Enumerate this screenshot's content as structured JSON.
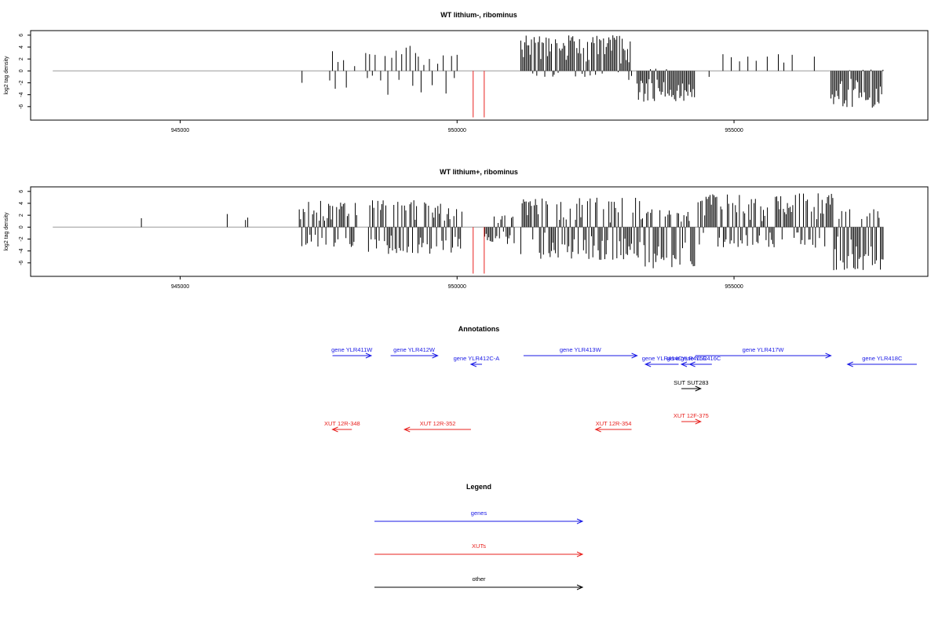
{
  "chart_data": [
    {
      "type": "bar",
      "title": "WT lithium-, ribominus",
      "ylabel": "log2 tag density",
      "xlabel": "",
      "xlim": [
        942300,
        958500
      ],
      "ylim": [
        -8,
        6.5
      ],
      "xticks": [
        945000,
        950000,
        955000
      ],
      "xtick_labels": [
        "945000",
        "950000",
        "955000"
      ],
      "yticks": [
        6,
        4,
        2,
        0,
        -2,
        -4,
        -6
      ],
      "ytick_labels": [
        "6",
        "4",
        "2",
        "0",
        "-2",
        "-4",
        "-6"
      ],
      "baseline": {
        "from": 942700,
        "to": 957700
      },
      "series": [
        {
          "color": "#000000",
          "bars": [
            {
              "x": 947200,
              "y": -2.0
            },
            {
              "x": 947700,
              "y": -1.6
            },
            {
              "x": 947750,
              "y": 3.3
            },
            {
              "x": 947800,
              "y": -3.0
            },
            {
              "x": 947850,
              "y": 1.5
            },
            {
              "x": 947950,
              "y": 1.8
            },
            {
              "x": 948000,
              "y": -2.8
            },
            {
              "x": 948150,
              "y": 0.8
            },
            {
              "x": 948350,
              "y": 3.0
            },
            {
              "x": 948380,
              "y": -1.2
            },
            {
              "x": 948420,
              "y": 2.8
            },
            {
              "x": 948470,
              "y": -0.8
            },
            {
              "x": 948520,
              "y": 2.7
            },
            {
              "x": 948620,
              "y": -1.6
            },
            {
              "x": 948700,
              "y": 2.5
            },
            {
              "x": 948750,
              "y": -4.0
            },
            {
              "x": 948820,
              "y": 2.2
            },
            {
              "x": 948900,
              "y": 3.4
            },
            {
              "x": 948950,
              "y": -1.5
            },
            {
              "x": 949000,
              "y": 2.8
            },
            {
              "x": 949080,
              "y": 3.9
            },
            {
              "x": 949150,
              "y": 4.2
            },
            {
              "x": 949200,
              "y": -2.5
            },
            {
              "x": 949250,
              "y": 3.0
            },
            {
              "x": 949300,
              "y": 2.4
            },
            {
              "x": 949350,
              "y": -3.6
            },
            {
              "x": 949400,
              "y": 1.0
            },
            {
              "x": 949500,
              "y": 2.0
            },
            {
              "x": 949550,
              "y": -2.4
            },
            {
              "x": 949650,
              "y": 1.2
            },
            {
              "x": 949750,
              "y": 2.6
            },
            {
              "x": 949800,
              "y": -3.8
            },
            {
              "x": 949900,
              "y": 2.5
            },
            {
              "x": 949950,
              "y": -1.2
            },
            {
              "x": 950000,
              "y": 2.7
            },
            {
              "x": 953100,
              "y": -1.5
            },
            {
              "x": 953300,
              "y": -2.2
            },
            {
              "x": 954550,
              "y": -1.0
            },
            {
              "x": 954800,
              "y": 2.8
            },
            {
              "x": 954950,
              "y": 2.3
            },
            {
              "x": 955100,
              "y": 1.6
            },
            {
              "x": 955250,
              "y": 2.4
            },
            {
              "x": 955400,
              "y": 1.7
            },
            {
              "x": 955600,
              "y": 2.4
            },
            {
              "x": 955800,
              "y": 2.8
            },
            {
              "x": 955900,
              "y": 1.4
            },
            {
              "x": 956050,
              "y": 2.7
            },
            {
              "x": 956450,
              "y": 2.4
            }
          ],
          "dense_blocks": [
            {
              "from": 951150,
              "to": 953150,
              "min": -1.0,
              "max": 6.0
            },
            {
              "from": 953250,
              "to": 954300,
              "min": -5.2,
              "max": 0.5
            },
            {
              "from": 956750,
              "to": 957700,
              "min": -6.2,
              "max": 0.3
            }
          ]
        },
        {
          "color": "#e8211e",
          "bars": [
            {
              "x": 950290,
              "y": -7.8
            },
            {
              "x": 950490,
              "y": -7.8
            }
          ]
        }
      ]
    },
    {
      "type": "bar",
      "title": "WT lithium+, ribominus",
      "ylabel": "log2 tag density",
      "xlabel": "",
      "xlim": [
        942300,
        958500
      ],
      "ylim": [
        -8,
        6.5
      ],
      "xticks": [
        945000,
        950000,
        955000
      ],
      "xtick_labels": [
        "945000",
        "950000",
        "955000"
      ],
      "yticks": [
        6,
        4,
        2,
        0,
        -2,
        -4,
        -6
      ],
      "ytick_labels": [
        "6",
        "4",
        "2",
        "0",
        "-2",
        "-4",
        "-6"
      ],
      "baseline": {
        "from": 942700,
        "to": 957700
      },
      "series": [
        {
          "color": "#000000",
          "bars": [
            {
              "x": 944300,
              "y": 1.5
            },
            {
              "x": 945850,
              "y": 2.2
            },
            {
              "x": 946180,
              "y": 1.2
            },
            {
              "x": 946220,
              "y": 1.6
            }
          ],
          "dense_blocks": [
            {
              "from": 947150,
              "to": 948200,
              "min": -3.5,
              "max": 4.5
            },
            {
              "from": 948400,
              "to": 950100,
              "min": -4.5,
              "max": 4.8
            },
            {
              "from": 950500,
              "to": 951050,
              "min": -3.0,
              "max": 2.0
            },
            {
              "from": 951150,
              "to": 953300,
              "min": -5.5,
              "max": 5.0
            },
            {
              "from": 953300,
              "to": 954300,
              "min": -7.0,
              "max": 3.0
            },
            {
              "from": 954350,
              "to": 956800,
              "min": -3.5,
              "max": 5.8
            },
            {
              "from": 956800,
              "to": 957700,
              "min": -7.5,
              "max": 3.0
            }
          ]
        },
        {
          "color": "#e8211e",
          "bars": [
            {
              "x": 950290,
              "y": -7.8
            },
            {
              "x": 950490,
              "y": -7.8
            }
          ]
        }
      ]
    },
    {
      "type": "other",
      "title": "Annotations",
      "xlim": [
        942300,
        958500
      ],
      "features": [
        {
          "label": "gene YLR411W",
          "start": 947750,
          "end": 948450,
          "strand": "+",
          "row": 1,
          "kind": "genes"
        },
        {
          "label": "gene YLR412W",
          "start": 948800,
          "end": 949650,
          "strand": "+",
          "row": 1,
          "kind": "genes"
        },
        {
          "label": "gene YLR412C-A",
          "start": 950250,
          "end": 950450,
          "strand": "-",
          "row": 2,
          "kind": "genes"
        },
        {
          "label": "gene YLR413W",
          "start": 951200,
          "end": 953250,
          "strand": "+",
          "row": 1,
          "kind": "genes"
        },
        {
          "label": "gene YLR414C",
          "start": 953400,
          "end": 954000,
          "strand": "-",
          "row": 2,
          "kind": "genes"
        },
        {
          "label": "gene YLR415C",
          "start": 954050,
          "end": 954250,
          "strand": "-",
          "row": 2,
          "kind": "genes"
        },
        {
          "label": "gene YLR416C",
          "start": 954200,
          "end": 954600,
          "strand": "-",
          "row": 2,
          "kind": "genes"
        },
        {
          "label": "gene YLR417W",
          "start": 954300,
          "end": 956750,
          "strand": "+",
          "row": 1,
          "kind": "genes"
        },
        {
          "label": "gene YLR418C",
          "start": 957050,
          "end": 958300,
          "strand": "-",
          "row": 2,
          "kind": "genes"
        },
        {
          "label": "SUT SUT283",
          "start": 954050,
          "end": 954400,
          "strand": "+",
          "row": 3,
          "kind": "other"
        },
        {
          "label": "XUT 12F-375",
          "start": 954050,
          "end": 954400,
          "strand": "+",
          "row": 4,
          "kind": "XUTs"
        },
        {
          "label": "XUT 12R-348",
          "start": 947750,
          "end": 948100,
          "strand": "-",
          "row": 5,
          "kind": "XUTs"
        },
        {
          "label": "XUT 12R-352",
          "start": 949050,
          "end": 950250,
          "strand": "-",
          "row": 5,
          "kind": "XUTs"
        },
        {
          "label": "XUT 12R-354",
          "start": 952500,
          "end": 953150,
          "strand": "-",
          "row": 5,
          "kind": "XUTs"
        }
      ]
    }
  ],
  "legend": {
    "title": "Legend",
    "items": [
      {
        "label": "genes",
        "color": "#1a1ae6"
      },
      {
        "label": "XUTs",
        "color": "#e8211e"
      },
      {
        "label": "other",
        "color": "#000000"
      }
    ]
  }
}
